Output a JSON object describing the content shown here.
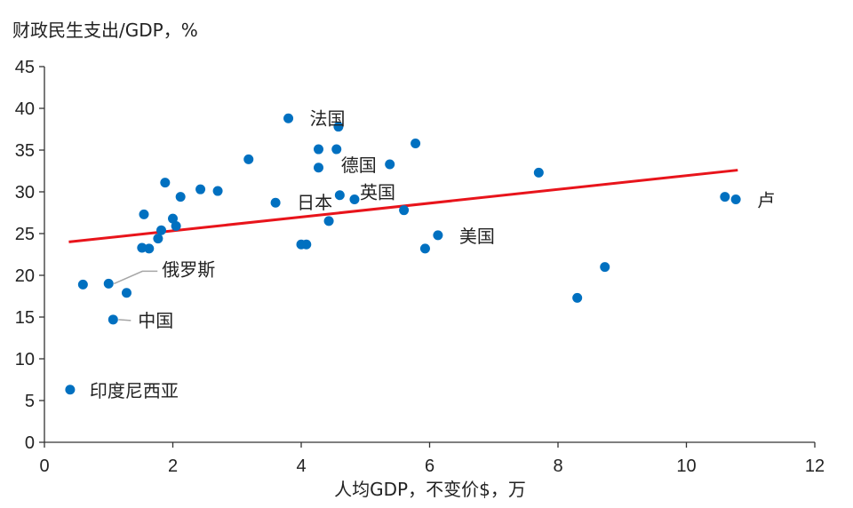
{
  "chart_data": {
    "type": "scatter",
    "title": "",
    "ylabel": "财政民生支出/GDP，%",
    "xlabel": "人均GDP，不变价$，万",
    "xlim": [
      0,
      12
    ],
    "ylim": [
      0,
      45
    ],
    "xticks": [
      0,
      2,
      4,
      6,
      8,
      10,
      12
    ],
    "yticks": [
      0,
      5,
      10,
      15,
      20,
      25,
      30,
      35,
      40,
      45
    ],
    "grid": false,
    "colors": {
      "point": "#0070C0",
      "trend": "#E8141B",
      "highlight_label": "#E8141B",
      "axis": "#333333"
    },
    "points": [
      {
        "x": 0.4,
        "y": 6.3,
        "label": "印度尼西亚"
      },
      {
        "x": 0.6,
        "y": 18.9
      },
      {
        "x": 1.0,
        "y": 19.0,
        "label": "俄罗斯"
      },
      {
        "x": 1.07,
        "y": 14.7,
        "label": "中国",
        "highlight": true
      },
      {
        "x": 1.28,
        "y": 17.9
      },
      {
        "x": 1.52,
        "y": 23.3
      },
      {
        "x": 1.55,
        "y": 27.3
      },
      {
        "x": 1.63,
        "y": 23.2
      },
      {
        "x": 1.77,
        "y": 24.4
      },
      {
        "x": 1.82,
        "y": 25.4
      },
      {
        "x": 1.88,
        "y": 31.1
      },
      {
        "x": 2.0,
        "y": 26.8
      },
      {
        "x": 2.05,
        "y": 25.9
      },
      {
        "x": 2.12,
        "y": 29.4
      },
      {
        "x": 2.43,
        "y": 30.3
      },
      {
        "x": 2.7,
        "y": 30.1
      },
      {
        "x": 3.18,
        "y": 33.9
      },
      {
        "x": 3.6,
        "y": 28.7,
        "label": "日本"
      },
      {
        "x": 3.8,
        "y": 38.8,
        "label": "法国"
      },
      {
        "x": 4.0,
        "y": 23.7
      },
      {
        "x": 4.08,
        "y": 23.7
      },
      {
        "x": 4.27,
        "y": 35.1
      },
      {
        "x": 4.27,
        "y": 32.9
      },
      {
        "x": 4.43,
        "y": 26.5
      },
      {
        "x": 4.55,
        "y": 35.1
      },
      {
        "x": 4.58,
        "y": 37.8
      },
      {
        "x": 4.6,
        "y": 29.6
      },
      {
        "x": 4.83,
        "y": 29.1,
        "label": "英国"
      },
      {
        "x": 5.38,
        "y": 33.3,
        "label": "德国"
      },
      {
        "x": 5.6,
        "y": 27.8
      },
      {
        "x": 5.78,
        "y": 35.8
      },
      {
        "x": 5.93,
        "y": 23.2
      },
      {
        "x": 6.13,
        "y": 24.8,
        "label": "美国"
      },
      {
        "x": 7.7,
        "y": 32.3
      },
      {
        "x": 8.3,
        "y": 17.3
      },
      {
        "x": 8.73,
        "y": 21.0
      },
      {
        "x": 10.6,
        "y": 29.4
      },
      {
        "x": 10.77,
        "y": 29.1,
        "label": "卢"
      }
    ],
    "trendline": {
      "x": [
        0.38,
        10.8
      ],
      "y": [
        24.0,
        32.6
      ]
    }
  }
}
